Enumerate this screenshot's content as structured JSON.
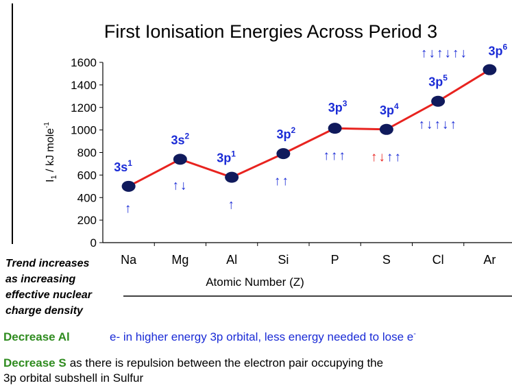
{
  "chart_data": {
    "type": "line",
    "title": "First Ionisation Energies Across Period 3",
    "ylabel": {
      "main": "I",
      "sub": "1",
      "rest": " / kJ mole",
      "sup": "-1"
    },
    "xlabel": "Atomic Number (Z)",
    "categories": [
      "Na",
      "Mg",
      "Al",
      "Si",
      "P",
      "S",
      "Cl",
      "Ar"
    ],
    "values": [
      500,
      740,
      580,
      790,
      1015,
      1005,
      1255,
      1535
    ],
    "color": "#e8231f",
    "marker_color": "#101a5c",
    "ylim": [
      0,
      1600
    ],
    "yticks": [
      0,
      200,
      400,
      600,
      800,
      1000,
      1200,
      1400,
      1600
    ],
    "orbitals": [
      {
        "base": "3s",
        "sup": "1"
      },
      {
        "base": "3s",
        "sup": "2"
      },
      {
        "base": "3p",
        "sup": "1"
      },
      {
        "base": "3p",
        "sup": "2"
      },
      {
        "base": "3p",
        "sup": "3"
      },
      {
        "base": "3p",
        "sup": "4"
      },
      {
        "base": "3p",
        "sup": "5"
      },
      {
        "base": "3p",
        "sup": "6"
      }
    ],
    "arrows": [
      [
        {
          "text": "↑",
          "color": "#1a2bd6"
        }
      ],
      [
        {
          "text": "↑↓",
          "color": "#1a2bd6"
        }
      ],
      [
        {
          "text": "↑",
          "color": "#1a2bd6"
        }
      ],
      [
        {
          "text": "↑↑",
          "color": "#1a2bd6"
        }
      ],
      [
        {
          "text": "↑↑↑",
          "color": "#1a2bd6"
        }
      ],
      [
        {
          "text": "↑↓",
          "color": "#e8231f"
        },
        {
          "text": "↑↑",
          "color": "#1a2bd6"
        }
      ],
      [
        {
          "text": "↑↓↑↓↑",
          "color": "#1a2bd6"
        }
      ],
      [
        {
          "text": "↑↓↑↓↑↓",
          "color": "#1a2bd6"
        }
      ]
    ],
    "label_color": "#1a2bd6"
  },
  "side_note": [
    "Trend increases",
    "as increasing",
    "effective nuclear",
    "charge density"
  ],
  "notes": [
    {
      "head": "Decrease Al",
      "text": "e- in higher energy 3p orbital, less energy needed to lose e",
      "sup": "-"
    },
    {
      "head": "Decrease S",
      "text": "as there is repulsion between the electron pair occupying the",
      "text2": "3p orbital subshell in Sulfur"
    }
  ]
}
